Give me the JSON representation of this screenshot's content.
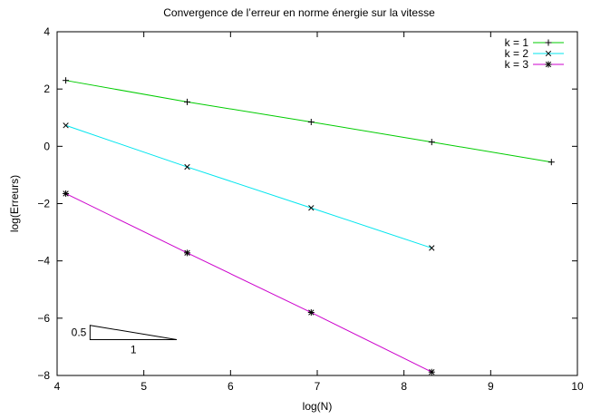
{
  "chart_data": {
    "type": "line",
    "title": "Convergence de l’erreur en norme énergie sur la vitesse",
    "xlabel": "log(N)",
    "ylabel": "log(Erreurs)",
    "xlim": [
      4,
      10
    ],
    "ylim": [
      -8,
      4
    ],
    "xticks": [
      4,
      5,
      6,
      7,
      8,
      9,
      10
    ],
    "yticks": [
      -8,
      -6,
      -4,
      -2,
      0,
      2,
      4
    ],
    "grid": false,
    "legend_position": "top-right",
    "series": [
      {
        "name": "k = 1",
        "color": "#00cc00",
        "marker": "plus",
        "points": [
          [
            4.1,
            2.3
          ],
          [
            5.5,
            1.55
          ],
          [
            6.93,
            0.85
          ],
          [
            8.32,
            0.15
          ],
          [
            9.7,
            -0.55
          ]
        ]
      },
      {
        "name": "k = 2",
        "color": "#00e5ee",
        "marker": "cross",
        "points": [
          [
            4.1,
            0.73
          ],
          [
            5.5,
            -0.72
          ],
          [
            6.93,
            -2.15
          ],
          [
            8.32,
            -3.55
          ]
        ]
      },
      {
        "name": "k = 3",
        "color": "#cc00cc",
        "marker": "asterisk",
        "points": [
          [
            4.1,
            -1.65
          ],
          [
            5.5,
            -3.72
          ],
          [
            6.93,
            -5.8
          ],
          [
            8.32,
            -7.88
          ]
        ]
      }
    ],
    "slope_triangle": {
      "run_label": "1",
      "rise_label": "0.5",
      "run": 1.0,
      "rise": 0.5,
      "anchor": [
        4.38,
        -6.75
      ]
    }
  }
}
